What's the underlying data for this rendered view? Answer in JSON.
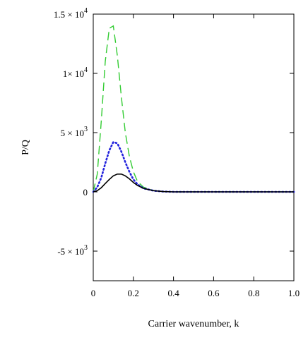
{
  "chart_data": {
    "type": "line",
    "title": "",
    "xlabel": "Carrier wavenumber,  k",
    "ylabel": "P/Q",
    "xlim": [
      0,
      1.0
    ],
    "ylim": [
      -7500,
      15000
    ],
    "grid": false,
    "legend": "none",
    "x_ticks": [
      {
        "value": 0,
        "label": "0"
      },
      {
        "value": 0.2,
        "label": "0.2"
      },
      {
        "value": 0.4,
        "label": "0.4"
      },
      {
        "value": 0.6,
        "label": "0.6"
      },
      {
        "value": 0.8,
        "label": "0.8"
      },
      {
        "value": 1.0,
        "label": "1.0"
      }
    ],
    "y_ticks": [
      {
        "value": 15000,
        "mant": "1.5 × 10",
        "exp": "4"
      },
      {
        "value": 10000,
        "mant": "1× 10",
        "exp": "4"
      },
      {
        "value": 5000,
        "mant": "5 × 10",
        "exp": "3"
      },
      {
        "value": 0,
        "mant": "0",
        "exp": ""
      },
      {
        "value": -5000,
        "mant": "-5 × 10",
        "exp": "3"
      }
    ],
    "series": [
      {
        "style": "dashed",
        "color": "#33cc33",
        "x": [
          0,
          0.02,
          0.04,
          0.06,
          0.08,
          0.1,
          0.12,
          0.14,
          0.16,
          0.18,
          0.2,
          0.22,
          0.25,
          0.3,
          0.35,
          0.4,
          0.45,
          0.5,
          0.6,
          0.7,
          0.8,
          0.9,
          1.0
        ],
        "y": [
          0,
          1500,
          6000,
          11000,
          13800,
          14000,
          11500,
          8000,
          5000,
          3000,
          1700,
          900,
          400,
          120,
          20,
          0,
          0,
          0,
          0,
          0,
          0,
          0,
          0
        ]
      },
      {
        "style": "dotted",
        "color": "#2222dd",
        "x": [
          0,
          0.02,
          0.04,
          0.06,
          0.08,
          0.1,
          0.12,
          0.14,
          0.16,
          0.18,
          0.2,
          0.22,
          0.25,
          0.3,
          0.35,
          0.4,
          0.45,
          0.5,
          0.6,
          0.7,
          0.8,
          0.9,
          1.0
        ],
        "y": [
          0,
          400,
          1200,
          2400,
          3500,
          4200,
          4100,
          3400,
          2500,
          1700,
          1050,
          650,
          300,
          100,
          25,
          0,
          0,
          0,
          0,
          0,
          0,
          0,
          0
        ]
      },
      {
        "style": "solid",
        "color": "#000000",
        "x": [
          0,
          0.02,
          0.04,
          0.06,
          0.08,
          0.1,
          0.12,
          0.14,
          0.16,
          0.18,
          0.2,
          0.22,
          0.25,
          0.3,
          0.35,
          0.4,
          0.45,
          0.5,
          0.6,
          0.7,
          0.8,
          0.9,
          1.0
        ],
        "y": [
          0,
          100,
          350,
          700,
          1050,
          1350,
          1500,
          1500,
          1350,
          1100,
          800,
          550,
          300,
          100,
          25,
          0,
          0,
          0,
          0,
          0,
          0,
          0,
          0
        ]
      }
    ]
  }
}
